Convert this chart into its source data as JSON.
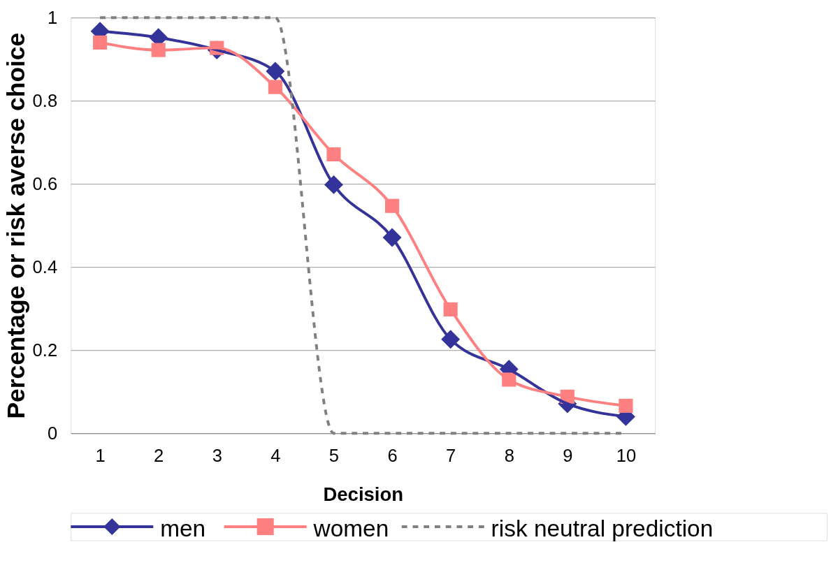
{
  "chart_data": {
    "type": "line",
    "xlabel": "Decision",
    "ylabel": "Percentage or risk averse choice",
    "categories": [
      "1",
      "2",
      "3",
      "4",
      "5",
      "6",
      "7",
      "8",
      "9",
      "10"
    ],
    "series": [
      {
        "name": "men",
        "color": "#333399",
        "marker": "diamond",
        "line_style": "solid",
        "values": [
          0.967,
          0.952,
          0.922,
          0.871,
          0.598,
          0.471,
          0.226,
          0.154,
          0.071,
          0.04
        ]
      },
      {
        "name": "women",
        "color": "#ff8080",
        "marker": "square",
        "line_style": "solid",
        "values": [
          0.94,
          0.922,
          0.927,
          0.833,
          0.671,
          0.547,
          0.298,
          0.129,
          0.088,
          0.066
        ]
      },
      {
        "name": "risk neutral prediction",
        "color": "#808080",
        "marker": "none",
        "line_style": "dashed",
        "values": [
          1,
          1,
          1,
          1,
          0,
          0,
          0,
          0,
          0,
          0
        ]
      }
    ],
    "ylim": [
      0,
      1
    ],
    "yticks": [
      0,
      0.2,
      0.4,
      0.6,
      0.8,
      1
    ],
    "grid": "y",
    "legend": "bottom"
  }
}
